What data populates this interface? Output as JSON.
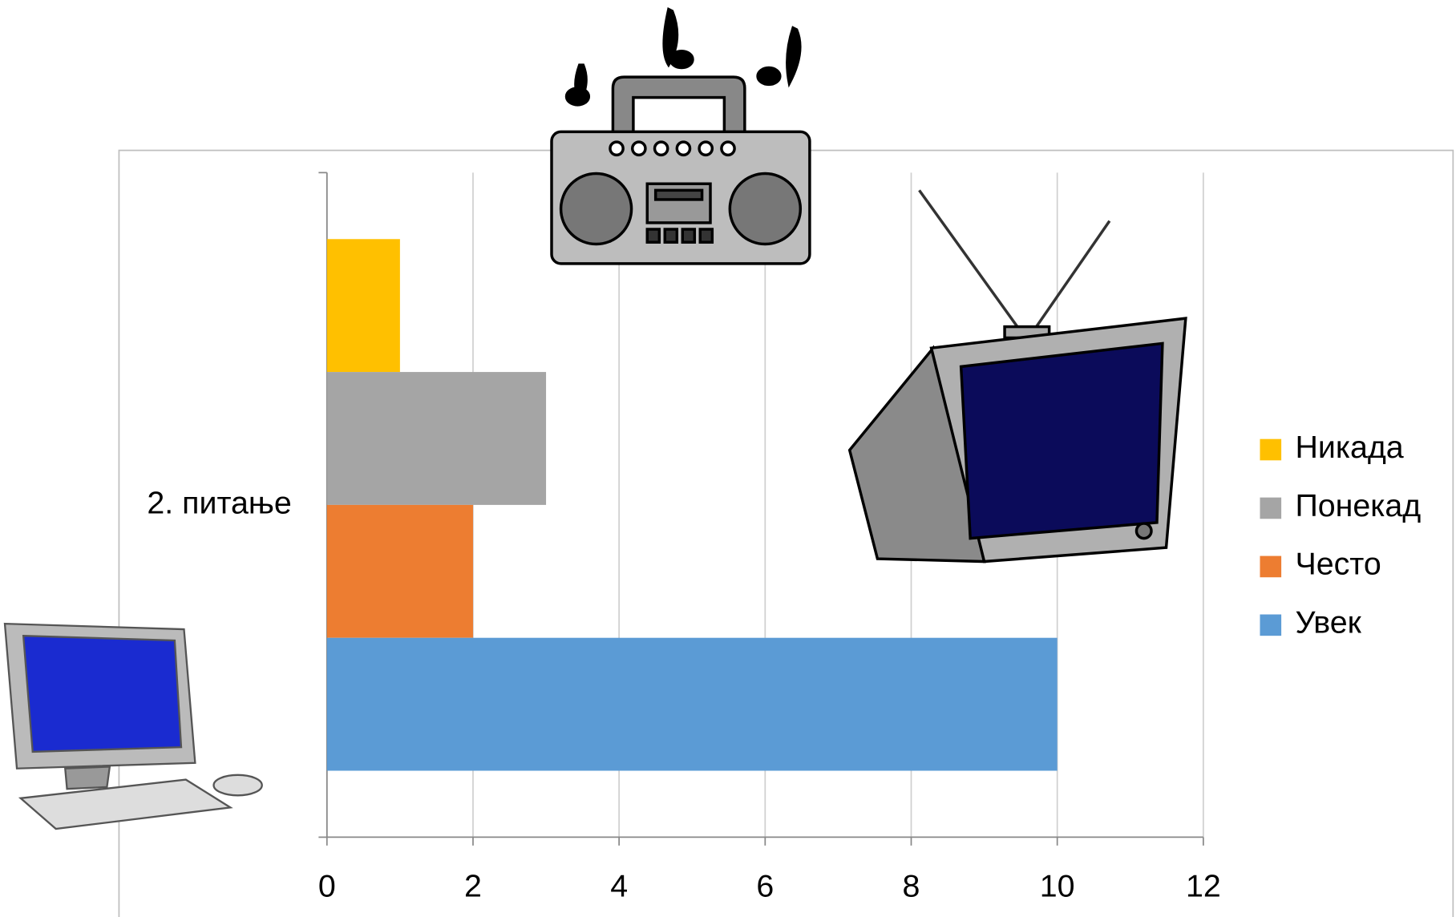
{
  "chart_data": {
    "type": "bar",
    "orientation": "horizontal",
    "categories": [
      "2. питање"
    ],
    "series": [
      {
        "name": "Никада",
        "color": "#FFC000",
        "values": [
          1
        ]
      },
      {
        "name": "Понекад",
        "color": "#A5A5A5",
        "values": [
          3
        ]
      },
      {
        "name": "Често",
        "color": "#ED7D31",
        "values": [
          2
        ]
      },
      {
        "name": "Увек",
        "color": "#5B9BD5",
        "values": [
          10
        ]
      }
    ],
    "xlim": [
      0,
      12
    ],
    "xticks": [
      0,
      2,
      4,
      6,
      8,
      10,
      12
    ],
    "grid": true,
    "legend": "right"
  }
}
